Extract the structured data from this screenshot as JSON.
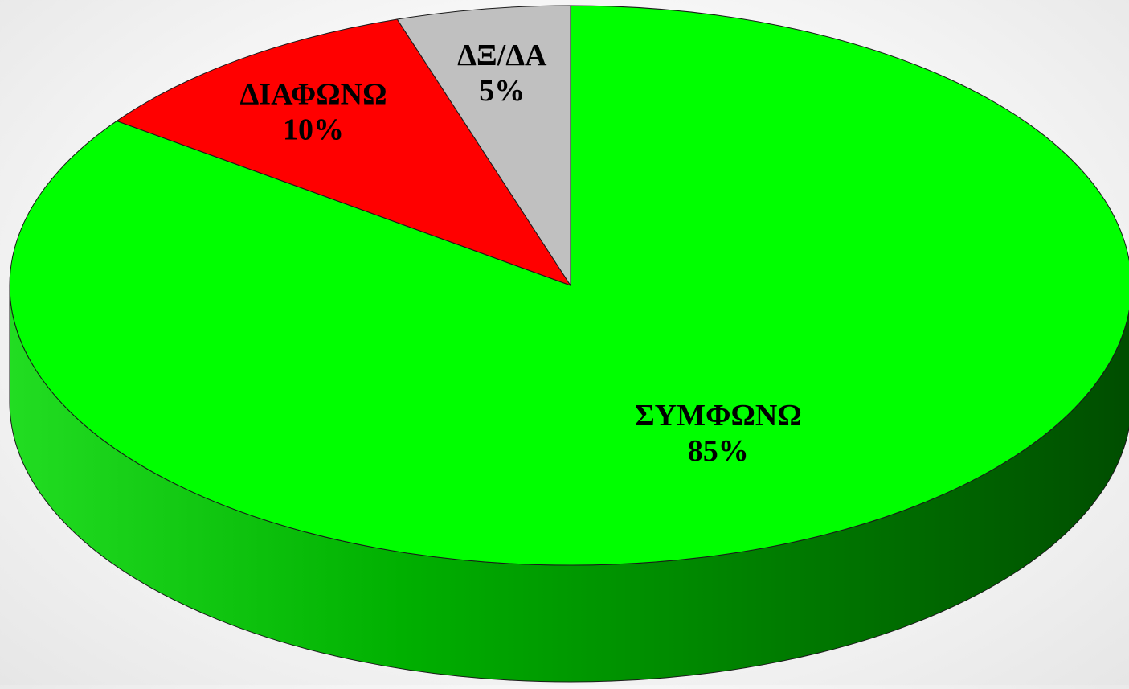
{
  "chart_data": {
    "type": "pie",
    "style": "3d",
    "title": "",
    "slices": [
      {
        "label": "ΣΥΜΦΩΝΩ",
        "value": 85,
        "value_label": "85%",
        "color": "#00ff00",
        "side_color": "#00a800"
      },
      {
        "label": "ΔΙΑΦΩΝΩ",
        "value": 10,
        "value_label": "10%",
        "color": "#ff0000",
        "side_color": "#b00000"
      },
      {
        "label": "ΔΞ/ΔΑ",
        "value": 5,
        "value_label": "5%",
        "color": "#c0c0c0",
        "side_color": "#888888"
      }
    ],
    "start_angle": "12 o'clock",
    "direction": "clockwise",
    "legend": "none",
    "data_labels": "inside"
  }
}
